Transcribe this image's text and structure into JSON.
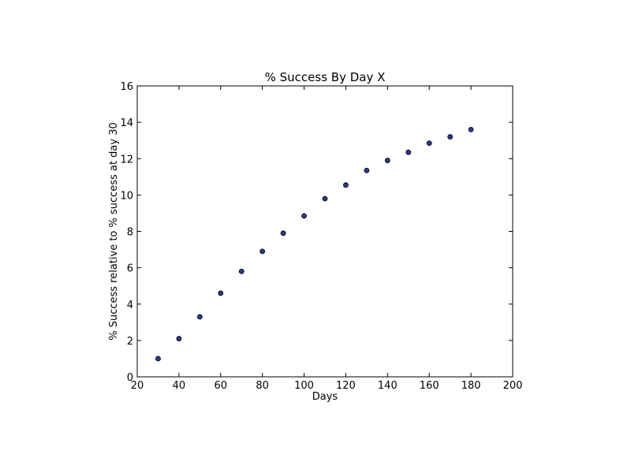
{
  "chart_data": {
    "type": "scatter",
    "title": "% Success By Day X",
    "xlabel": "Days",
    "ylabel": "% Success relative to % success at day 30",
    "xlim": [
      20,
      200
    ],
    "ylim": [
      0,
      16
    ],
    "xticks": [
      20,
      40,
      60,
      80,
      100,
      120,
      140,
      160,
      180,
      200
    ],
    "yticks": [
      0,
      2,
      4,
      6,
      8,
      10,
      12,
      14,
      16
    ],
    "grid": false,
    "series": [
      {
        "x": [
          30,
          40,
          50,
          60,
          70,
          80,
          90,
          100,
          110,
          120,
          130,
          140,
          150,
          160,
          170,
          180
        ],
        "y": [
          1.0,
          2.1,
          3.3,
          4.6,
          5.8,
          6.9,
          7.9,
          8.85,
          9.8,
          10.55,
          11.35,
          11.9,
          12.35,
          12.85,
          13.2,
          13.6
        ]
      }
    ],
    "colors": {
      "marker_fill": "#2b3c8c",
      "marker_edge": "#000000",
      "axes": "#000000"
    }
  }
}
